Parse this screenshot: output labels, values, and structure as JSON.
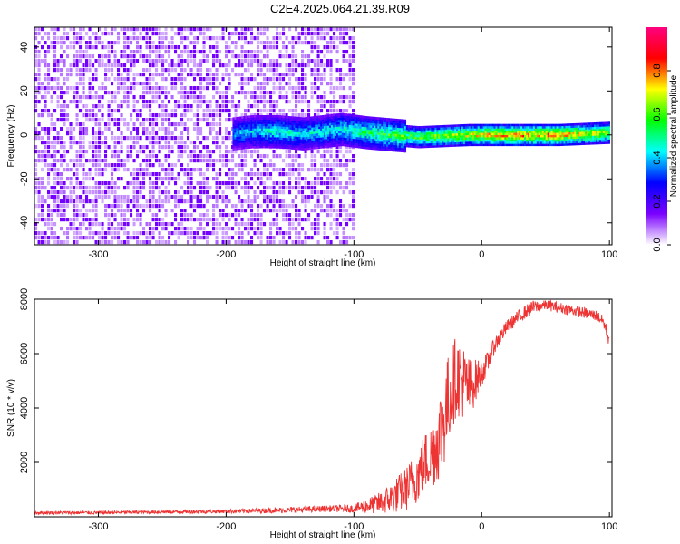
{
  "title": "C2E4.2025.064.21.39.R09",
  "chart_data": [
    {
      "type": "heatmap",
      "xlabel": "Height of straight line (km)",
      "ylabel": "Frequency (Hz)",
      "xlim": [
        -350,
        102
      ],
      "ylim": [
        -50,
        49
      ],
      "xticks": [
        -300,
        -200,
        -100,
        0,
        100
      ],
      "yticks": [
        -40,
        -20,
        0,
        20,
        40
      ],
      "colorbar": {
        "label": "Normalized spectral amplitude",
        "ticks": [
          0.0,
          0.2,
          0.4,
          0.6,
          0.8
        ],
        "range": [
          0,
          1
        ],
        "colormap": [
          "#ffffff",
          "#7a00ff",
          "#0000ff",
          "#00ffff",
          "#00ff00",
          "#ffff00",
          "#ff0000",
          "#ff0080"
        ]
      },
      "features": [
        {
          "segment": "noise",
          "x_range": [
            -350,
            -100
          ],
          "y_range": [
            -50,
            49
          ],
          "amplitude": 0.15
        },
        {
          "segment": "ridge",
          "x": [
            -195,
            -180,
            -160,
            -140,
            -110,
            -90,
            -70,
            -50,
            -30,
            -10,
            0,
            20,
            40,
            60,
            80,
            100
          ],
          "y": [
            0.5,
            1.5,
            1.5,
            0.5,
            2.5,
            1.0,
            0.0,
            -1.0,
            -0.5,
            0.0,
            0.0,
            0.0,
            0.0,
            0.0,
            0.5,
            1.0
          ],
          "amplitude": [
            0.4,
            0.45,
            0.5,
            0.45,
            0.5,
            0.55,
            0.6,
            0.65,
            0.7,
            0.75,
            0.8,
            0.85,
            0.85,
            0.85,
            0.75,
            0.7
          ]
        }
      ]
    },
    {
      "type": "line",
      "xlabel": "Height of straight line (km)",
      "ylabel": "SNR (10 * v/v)",
      "xlim": [
        -350,
        102
      ],
      "ylim": [
        0,
        8000
      ],
      "xticks": [
        -300,
        -200,
        -100,
        0,
        100
      ],
      "yticks": [
        2000,
        4000,
        6000,
        8000
      ],
      "series": [
        {
          "color": "#ee3333",
          "x": [
            -350,
            -300,
            -250,
            -200,
            -150,
            -120,
            -100,
            -80,
            -70,
            -60,
            -50,
            -45,
            -40,
            -35,
            -30,
            -25,
            -20,
            -15,
            -10,
            -5,
            0,
            5,
            10,
            20,
            30,
            40,
            50,
            60,
            70,
            80,
            90,
            95,
            100
          ],
          "y": [
            150,
            150,
            180,
            200,
            250,
            300,
            300,
            500,
            700,
            1000,
            1500,
            2000,
            2200,
            2700,
            3500,
            4500,
            5200,
            5000,
            4700,
            5000,
            5300,
            5700,
            6300,
            7000,
            7400,
            7700,
            7800,
            7700,
            7600,
            7500,
            7400,
            7200,
            6500
          ],
          "noise": [
            60,
            60,
            60,
            70,
            110,
            120,
            150,
            400,
            600,
            800,
            1000,
            1100,
            1200,
            1500,
            1800,
            1700,
            1500,
            1400,
            1200,
            800,
            500,
            400,
            300,
            250,
            250,
            250,
            200,
            200,
            200,
            200,
            200,
            200,
            300
          ]
        }
      ]
    }
  ]
}
